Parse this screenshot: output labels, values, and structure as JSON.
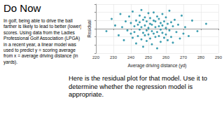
{
  "slide": {
    "title": "Do Now",
    "intro": "In golf, being able to drive the ball farther is likely to lead to better (lower) scores. Using data from the Ladies Professional Golf Association (LPGA) in a recent year, a linear model was used to predict y = scoring average from x = average driving distance (in yards).",
    "prompt": "Here is the residual plot for that model. Use it to determine whether the regression model is appropriate."
  },
  "chart_data": {
    "type": "scatter",
    "xlabel": "Average driving distance (yd)",
    "ylabel": "Residual",
    "x": [
      226,
      229,
      231,
      233,
      234,
      235,
      236,
      237,
      238,
      239,
      240,
      240,
      241,
      241,
      242,
      242,
      243,
      243,
      244,
      244,
      245,
      245,
      245,
      246,
      246,
      246,
      247,
      247,
      247,
      248,
      248,
      248,
      249,
      249,
      249,
      250,
      250,
      250,
      251,
      251,
      251,
      252,
      252,
      252,
      253,
      253,
      253,
      254,
      254,
      254,
      255,
      255,
      255,
      256,
      256,
      256,
      257,
      257,
      257,
      258,
      258,
      258,
      259,
      259,
      260,
      260,
      260,
      261,
      261,
      262,
      262,
      263,
      263,
      264,
      264,
      265,
      266,
      267,
      268,
      269,
      270,
      271,
      273,
      275,
      278,
      283
    ],
    "values": [
      -0.3,
      1.2,
      0.4,
      -0.8,
      1.8,
      0.2,
      -1.4,
      0.9,
      -0.2,
      1.5,
      -0.6,
      0.7,
      2.1,
      -1.1,
      0.3,
      -0.4,
      1.0,
      -1.8,
      0.5,
      -0.9,
      1.6,
      -0.1,
      0.8,
      -1.3,
      0.2,
      2.3,
      -0.5,
      1.1,
      -2.2,
      0.4,
      -0.8,
      1.4,
      -0.2,
      0.9,
      -1.5,
      0.1,
      1.9,
      -0.7,
      0.6,
      -1.2,
      1.3,
      -0.3,
      0.5,
      -1.9,
      1.0,
      -0.6,
      2.0,
      0.2,
      -1.0,
      0.9,
      -0.4,
      1.5,
      -2.4,
      0.3,
      -0.9,
      1.2,
      -0.1,
      0.7,
      -1.6,
      1.8,
      -0.5,
      0.4,
      -1.1,
      0.9,
      0.1,
      -0.7,
      1.4,
      -1.4,
      0.6,
      2.2,
      -0.2,
      0.8,
      -1.0,
      0.3,
      -1.7,
      1.1,
      -0.4,
      0.5,
      -1.2,
      1.6,
      -0.6,
      0.2,
      -0.9,
      1.0,
      -0.3,
      0.6
    ],
    "xlim": [
      220,
      290
    ],
    "xticks": [
      220,
      230,
      240,
      250,
      260,
      270,
      280,
      290
    ],
    "ylim": [
      -3,
      3
    ],
    "yticks": [
      -3,
      -2,
      -1,
      0,
      1,
      2,
      3
    ],
    "tick_labels": "x",
    "grid": true,
    "color": "#2b95a8",
    "marker": "circle"
  }
}
